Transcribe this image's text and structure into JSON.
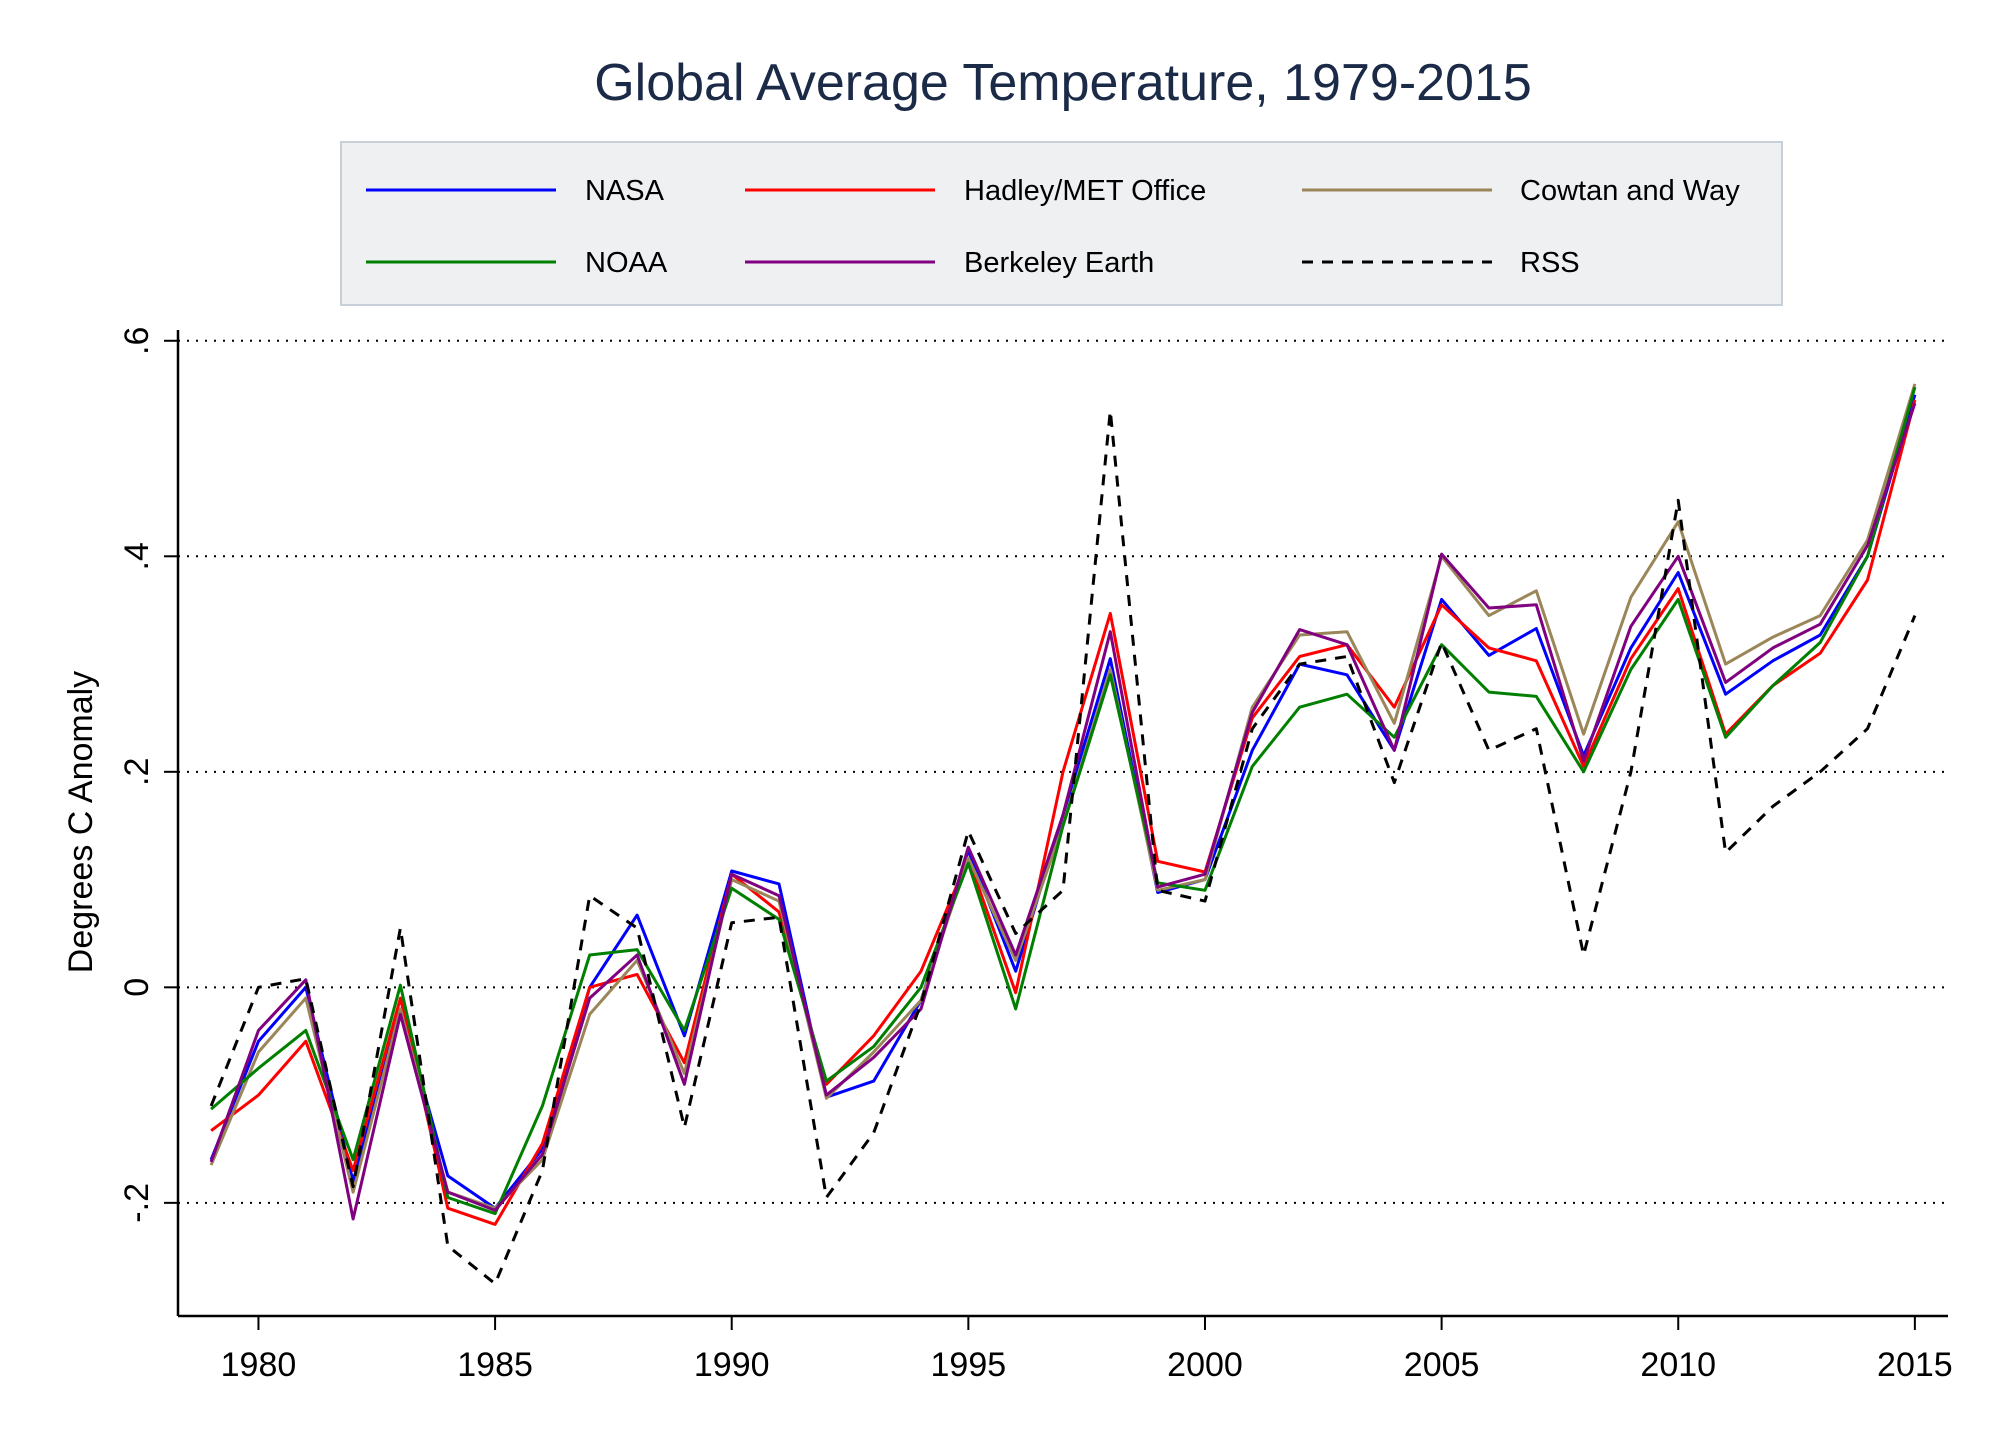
{
  "chart_data": {
    "type": "line",
    "title": "Global Average Temperature, 1979-2015",
    "xlabel": "",
    "ylabel": "Degrees C Anomaly",
    "x": [
      1979,
      1980,
      1981,
      1982,
      1983,
      1984,
      1985,
      1986,
      1987,
      1988,
      1989,
      1990,
      1991,
      1992,
      1993,
      1994,
      1995,
      1996,
      1997,
      1998,
      1999,
      2000,
      2001,
      2002,
      2003,
      2004,
      2005,
      2006,
      2007,
      2008,
      2009,
      2010,
      2011,
      2012,
      2013,
      2014,
      2015
    ],
    "xlim": [
      1978.3,
      2015.7
    ],
    "ylim": [
      -0.305,
      0.61
    ],
    "x_ticks": [
      1980,
      1985,
      1990,
      1995,
      2000,
      2005,
      2010,
      2015
    ],
    "x_tick_labels": [
      "1980",
      "1985",
      "1990",
      "1995",
      "2000",
      "2005",
      "2010",
      "2015"
    ],
    "y_ticks": [
      -0.2,
      0,
      0.2,
      0.4,
      0.6
    ],
    "y_tick_labels": [
      "-.2",
      "0",
      ".2",
      ".4",
      ".6"
    ],
    "grid": "horizontal-dotted",
    "legend_position": "top",
    "series": [
      {
        "name": "NASA",
        "color": "#0000ff",
        "dash": "solid",
        "values": [
          -0.16,
          -0.05,
          0.0,
          -0.18,
          -0.02,
          -0.175,
          -0.205,
          -0.15,
          0.0,
          0.067,
          -0.045,
          0.108,
          0.096,
          -0.102,
          -0.087,
          -0.012,
          0.127,
          0.015,
          0.16,
          0.305,
          0.088,
          0.1,
          0.22,
          0.3,
          0.29,
          0.22,
          0.36,
          0.308,
          0.333,
          0.215,
          0.315,
          0.385,
          0.272,
          0.303,
          0.327,
          0.4,
          0.55
        ]
      },
      {
        "name": "Hadley/MET Office",
        "color": "#ff0000",
        "dash": "solid",
        "values": [
          -0.133,
          -0.1,
          -0.05,
          -0.17,
          -0.01,
          -0.205,
          -0.22,
          -0.145,
          0.0,
          0.012,
          -0.07,
          0.105,
          0.07,
          -0.09,
          -0.045,
          0.015,
          0.12,
          -0.005,
          0.2,
          0.347,
          0.117,
          0.107,
          0.25,
          0.307,
          0.318,
          0.26,
          0.355,
          0.315,
          0.303,
          0.205,
          0.305,
          0.37,
          0.235,
          0.28,
          0.31,
          0.378,
          0.545
        ]
      },
      {
        "name": "Cowtan and Way",
        "color": "#9a8658",
        "dash": "solid",
        "values": [
          -0.165,
          -0.06,
          -0.01,
          -0.19,
          -0.02,
          -0.19,
          -0.205,
          -0.16,
          -0.025,
          0.025,
          -0.08,
          0.1,
          0.08,
          -0.103,
          -0.06,
          -0.012,
          0.12,
          0.025,
          0.15,
          0.295,
          0.09,
          0.1,
          0.26,
          0.327,
          0.33,
          0.245,
          0.4,
          0.345,
          0.368,
          0.235,
          0.362,
          0.432,
          0.3,
          0.325,
          0.345,
          0.415,
          0.56
        ]
      },
      {
        "name": "NOAA",
        "color": "#007f00",
        "dash": "solid",
        "values": [
          -0.113,
          -0.075,
          -0.04,
          -0.16,
          0.002,
          -0.195,
          -0.21,
          -0.11,
          0.03,
          0.035,
          -0.04,
          0.092,
          0.063,
          -0.087,
          -0.055,
          0.0,
          0.115,
          -0.02,
          0.15,
          0.29,
          0.097,
          0.09,
          0.205,
          0.26,
          0.272,
          0.232,
          0.318,
          0.274,
          0.27,
          0.2,
          0.295,
          0.36,
          0.232,
          0.28,
          0.32,
          0.4,
          0.557
        ]
      },
      {
        "name": "Berkeley Earth",
        "color": "#800080",
        "dash": "solid",
        "values": [
          -0.162,
          -0.04,
          0.007,
          -0.215,
          -0.025,
          -0.19,
          -0.207,
          -0.155,
          -0.01,
          0.03,
          -0.09,
          0.105,
          0.085,
          -0.1,
          -0.065,
          -0.02,
          0.13,
          0.03,
          0.16,
          0.33,
          0.093,
          0.105,
          0.255,
          0.332,
          0.318,
          0.22,
          0.402,
          0.352,
          0.355,
          0.21,
          0.335,
          0.4,
          0.283,
          0.315,
          0.337,
          0.41,
          0.542
        ]
      },
      {
        "name": "RSS",
        "color": "#000000",
        "dash": "dashed",
        "values": [
          -0.11,
          0.0,
          0.008,
          -0.185,
          0.055,
          -0.24,
          -0.275,
          -0.17,
          0.085,
          0.055,
          -0.13,
          0.06,
          0.065,
          -0.195,
          -0.135,
          -0.015,
          0.145,
          0.05,
          0.09,
          0.535,
          0.09,
          0.08,
          0.24,
          0.3,
          0.307,
          0.19,
          0.32,
          0.22,
          0.24,
          0.03,
          0.2,
          0.452,
          0.125,
          0.168,
          0.2,
          0.24,
          0.345
        ]
      }
    ]
  }
}
